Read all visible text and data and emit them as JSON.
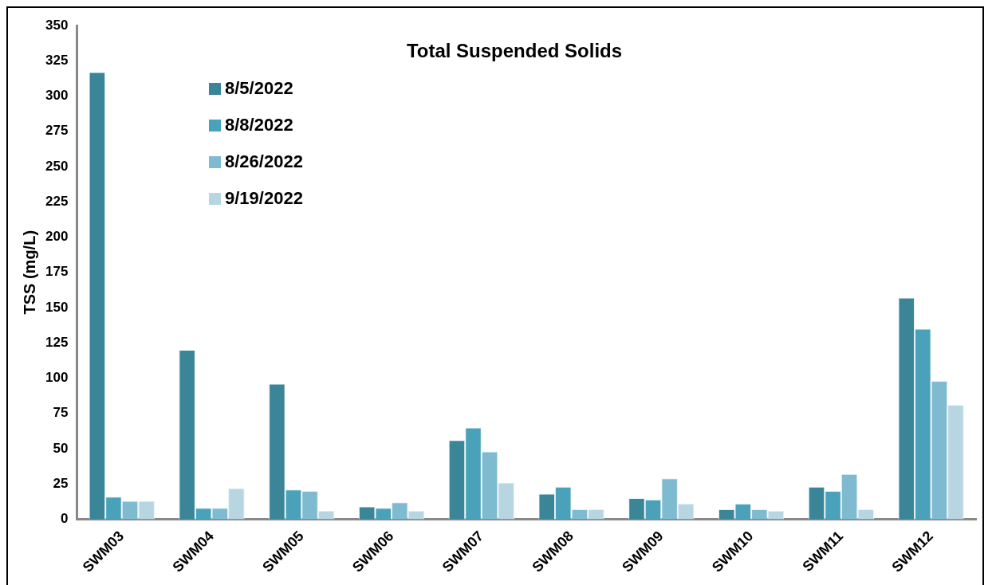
{
  "chart_data": {
    "type": "bar",
    "title": "Total Suspended Solids",
    "ylabel": "TSS (mg/L)",
    "categories": [
      "SWM03",
      "SWM04",
      "SWM05",
      "SWM06",
      "SWM07",
      "SWM08",
      "SWM09",
      "SWM10",
      "SWM11",
      "SWM12"
    ],
    "series": [
      {
        "name": "8/5/2022",
        "color": "#3a8597",
        "values": [
          317,
          120,
          96,
          9,
          56,
          18,
          15,
          7,
          23,
          157
        ]
      },
      {
        "name": "8/8/2022",
        "color": "#49a2ba",
        "values": [
          16,
          8,
          21,
          8,
          65,
          23,
          14,
          11,
          20,
          135
        ]
      },
      {
        "name": "8/26/2022",
        "color": "#7fbbd0",
        "values": [
          13,
          8,
          20,
          12,
          48,
          7,
          29,
          7,
          32,
          98
        ]
      },
      {
        "name": "9/19/2022",
        "color": "#b8d6e1",
        "values": [
          13,
          22,
          6,
          6,
          26,
          7,
          11,
          6,
          7,
          81
        ]
      }
    ],
    "ylim": [
      0,
      350
    ],
    "yticks": [
      0,
      25,
      50,
      75,
      100,
      125,
      150,
      175,
      200,
      225,
      250,
      275,
      300,
      325,
      350
    ],
    "grid": false,
    "legend": "top left"
  }
}
